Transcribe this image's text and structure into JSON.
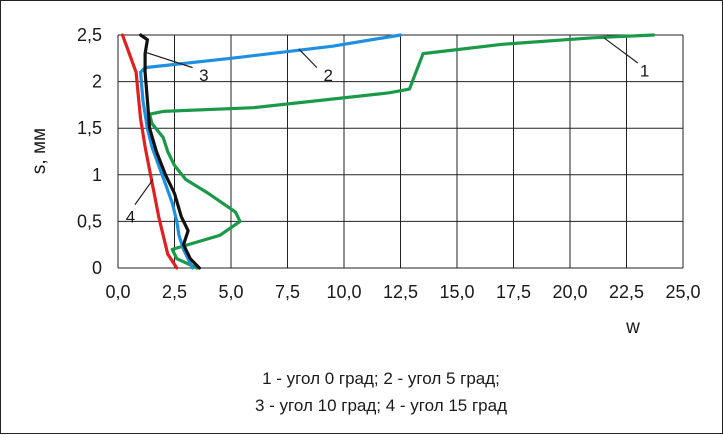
{
  "chart_data": {
    "type": "line",
    "xlabel": "w",
    "ylabel": "s, мм",
    "xlim": [
      0,
      25
    ],
    "ylim": [
      0,
      2.5
    ],
    "grid": true,
    "x_ticks": [
      "0,0",
      "2,5",
      "5,0",
      "7,5",
      "10,0",
      "12,5",
      "15,0",
      "17,5",
      "20,0",
      "22,5",
      "25,0"
    ],
    "y_ticks": [
      "0",
      "0,5",
      "1",
      "1,5",
      "2",
      "2,5"
    ],
    "series": [
      {
        "name": "1",
        "color": "#1a9a48",
        "x": [
          3.5,
          2.6,
          2.4,
          4.5,
          5.4,
          5.2,
          4.0,
          3.0,
          2.5,
          2.2,
          2.0,
          1.5,
          1.4,
          2.0,
          6.0,
          12.0,
          12.9,
          13.1,
          13.5,
          17.0,
          21.0,
          23.7
        ],
        "y": [
          0.0,
          0.1,
          0.2,
          0.35,
          0.5,
          0.6,
          0.8,
          0.95,
          1.1,
          1.25,
          1.4,
          1.55,
          1.65,
          1.68,
          1.72,
          1.88,
          1.92,
          2.05,
          2.3,
          2.4,
          2.47,
          2.5
        ]
      },
      {
        "name": "2",
        "color": "#1f8fe0",
        "x": [
          3.3,
          2.9,
          2.7,
          2.6,
          2.4,
          2.1,
          1.8,
          1.5,
          1.3,
          1.1,
          1.0,
          1.2,
          5.0,
          9.5,
          12.5
        ],
        "y": [
          0.0,
          0.2,
          0.35,
          0.5,
          0.7,
          0.9,
          1.1,
          1.3,
          1.5,
          1.8,
          2.1,
          2.15,
          2.25,
          2.38,
          2.5
        ]
      },
      {
        "name": "3",
        "color": "#111111",
        "x": [
          3.6,
          3.2,
          2.9,
          3.1,
          2.8,
          2.5,
          2.1,
          1.7,
          1.4,
          1.3,
          1.2,
          1.2,
          1.3,
          1.0
        ],
        "y": [
          0.0,
          0.1,
          0.25,
          0.4,
          0.55,
          0.8,
          1.0,
          1.25,
          1.5,
          1.8,
          2.1,
          2.3,
          2.45,
          2.5
        ]
      },
      {
        "name": "4",
        "color": "#e02020",
        "x": [
          2.6,
          2.2,
          2.0,
          1.8,
          1.6,
          1.4,
          1.2,
          1.0,
          0.9,
          0.8,
          0.5,
          0.2
        ],
        "y": [
          0.0,
          0.15,
          0.35,
          0.55,
          0.8,
          1.05,
          1.3,
          1.6,
          1.85,
          2.1,
          2.3,
          2.5
        ]
      }
    ]
  },
  "legend_lines": [
    "1 - угол 0 град;   2 - угол 5 град;",
    "3 - угол 10 град; 4 - угол 15 град"
  ]
}
